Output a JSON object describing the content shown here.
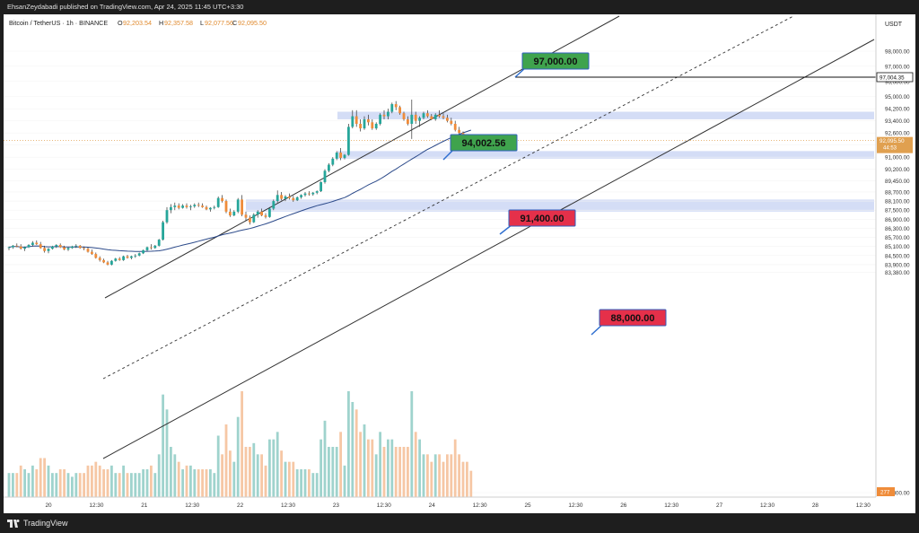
{
  "header": {
    "published": "EhsanZeydabadi published on TradingView.com, Apr 24, 2025 11:45 UTC+3:30"
  },
  "footer": {
    "brand": "TradingView"
  },
  "chart_data": {
    "type": "candlestick",
    "symbol_label": "Bitcoin / TetherUS · 1h · BINANCE",
    "ohlc": {
      "o_label": "O",
      "o": "92,203.54",
      "h_label": "H",
      "h": "92,357.58",
      "l_label": "L",
      "l": "92,077.56",
      "c_label": "C",
      "c": "92,095.50"
    },
    "currency": "USDT",
    "y_ticks": [
      "98,000.00",
      "97,000.00",
      "96,000.00",
      "95,000.00",
      "94,200.00",
      "93,400.00",
      "92,600.00",
      "91,800.00",
      "91,000.00",
      "90,200.00",
      "89,450.00",
      "88,700.00",
      "88,100.00",
      "87,500.00",
      "86,900.00",
      "86,300.00",
      "85,700.00",
      "85,100.00",
      "84,500.00",
      "83,900.00",
      "83,380.00",
      "82,800.00"
    ],
    "x_ticks": [
      "20",
      "12:30",
      "21",
      "12:30",
      "22",
      "12:30",
      "23",
      "12:30",
      "24",
      "12:30",
      "25",
      "12:30",
      "26",
      "12:30",
      "27",
      "12:30",
      "28",
      "12:30"
    ],
    "level_line": {
      "value": "97,004.35"
    },
    "current_price": {
      "value": "92,095.50",
      "countdown": "44:53"
    },
    "volume_last": "277",
    "annotations": [
      {
        "label": "97,000.00",
        "color": "#3fa34d"
      },
      {
        "label": "94,002.56",
        "color": "#3fa34d"
      },
      {
        "label": "91,400.00",
        "color": "#e5304a"
      },
      {
        "label": "88,000.00",
        "color": "#e5304a"
      }
    ],
    "zones": [
      {
        "from": 93500,
        "to": 94000
      },
      {
        "from": 90900,
        "to": 91400
      },
      {
        "from": 87400,
        "to": 88200
      }
    ],
    "colors": {
      "up": "#26a69a",
      "down": "#ef8c3a",
      "zone": "#c5d1f3",
      "ma": "#2c4a8a"
    },
    "candles": [
      [
        85000,
        85100,
        84850,
        85050
      ],
      [
        85050,
        85200,
        84950,
        85150
      ],
      [
        85150,
        85300,
        85050,
        85100
      ],
      [
        85100,
        85250,
        84900,
        84950
      ],
      [
        84950,
        85100,
        84800,
        85050
      ],
      [
        85050,
        85250,
        85000,
        85200
      ],
      [
        85200,
        85450,
        85100,
        85350
      ],
      [
        85350,
        85500,
        85200,
        85250
      ],
      [
        85250,
        85400,
        84950,
        85000
      ],
      [
        85000,
        85150,
        84700,
        84800
      ],
      [
        84800,
        85000,
        84650,
        84950
      ],
      [
        84950,
        85150,
        84900,
        85100
      ],
      [
        85100,
        85250,
        85000,
        85200
      ],
      [
        85200,
        85300,
        85000,
        85050
      ],
      [
        85050,
        85150,
        84850,
        84900
      ],
      [
        84900,
        85050,
        84800,
        85000
      ],
      [
        85000,
        85150,
        84950,
        85100
      ],
      [
        85100,
        85250,
        85000,
        85150
      ],
      [
        85150,
        85200,
        84950,
        85000
      ],
      [
        85000,
        85100,
        84850,
        84950
      ],
      [
        84950,
        85050,
        84700,
        84750
      ],
      [
        84750,
        84900,
        84550,
        84600
      ],
      [
        84600,
        84700,
        84300,
        84350
      ],
      [
        84350,
        84450,
        84100,
        84200
      ],
      [
        84200,
        84300,
        84000,
        84050
      ],
      [
        84050,
        84150,
        83850,
        83900
      ],
      [
        83900,
        84200,
        83850,
        84150
      ],
      [
        84150,
        84350,
        84100,
        84300
      ],
      [
        84300,
        84400,
        84150,
        84200
      ],
      [
        84200,
        84500,
        84150,
        84450
      ],
      [
        84450,
        84550,
        84300,
        84350
      ],
      [
        84350,
        84500,
        84250,
        84450
      ],
      [
        84450,
        84600,
        84350,
        84500
      ],
      [
        84500,
        84700,
        84450,
        84650
      ],
      [
        84650,
        84900,
        84600,
        84850
      ],
      [
        84850,
        85100,
        84800,
        85050
      ],
      [
        85050,
        85250,
        84900,
        85000
      ],
      [
        85000,
        85200,
        84950,
        85150
      ],
      [
        85150,
        85600,
        85100,
        85550
      ],
      [
        85550,
        86800,
        85500,
        86700
      ],
      [
        86700,
        87700,
        86600,
        87500
      ],
      [
        87500,
        87900,
        87300,
        87700
      ],
      [
        87700,
        88000,
        87500,
        87800
      ],
      [
        87800,
        87950,
        87550,
        87650
      ],
      [
        87650,
        87900,
        87600,
        87800
      ],
      [
        87800,
        87950,
        87600,
        87700
      ],
      [
        87700,
        87850,
        87500,
        87750
      ],
      [
        87750,
        87950,
        87650,
        87850
      ],
      [
        87850,
        88000,
        87700,
        87800
      ],
      [
        87800,
        87950,
        87650,
        87700
      ],
      [
        87700,
        87800,
        87500,
        87550
      ],
      [
        87550,
        87700,
        87400,
        87650
      ],
      [
        87650,
        87800,
        87550,
        87700
      ],
      [
        87700,
        88400,
        87650,
        88300
      ],
      [
        88300,
        88500,
        88000,
        88100
      ],
      [
        88100,
        88200,
        87300,
        87400
      ],
      [
        87400,
        87600,
        87050,
        87150
      ],
      [
        87150,
        87500,
        87100,
        87400
      ],
      [
        87400,
        88300,
        87300,
        88200
      ],
      [
        88200,
        88500,
        87100,
        87200
      ],
      [
        87200,
        87400,
        86800,
        87000
      ],
      [
        87000,
        87150,
        86550,
        86700
      ],
      [
        86700,
        87300,
        86650,
        87200
      ],
      [
        87200,
        87500,
        87000,
        87400
      ],
      [
        87400,
        87600,
        87100,
        87150
      ],
      [
        87150,
        87300,
        86950,
        87050
      ],
      [
        87050,
        87700,
        87000,
        87600
      ],
      [
        87600,
        88200,
        87500,
        88100
      ],
      [
        88100,
        88800,
        88000,
        88500
      ],
      [
        88500,
        88700,
        88150,
        88250
      ],
      [
        88250,
        88500,
        88100,
        88400
      ],
      [
        88400,
        88600,
        88200,
        88300
      ],
      [
        88300,
        88450,
        88050,
        88150
      ],
      [
        88150,
        88400,
        88100,
        88350
      ],
      [
        88350,
        88550,
        88250,
        88500
      ],
      [
        88500,
        88700,
        88400,
        88600
      ],
      [
        88600,
        88750,
        88450,
        88550
      ],
      [
        88550,
        88700,
        88450,
        88650
      ],
      [
        88650,
        88800,
        88550,
        88750
      ],
      [
        88750,
        89400,
        88700,
        89350
      ],
      [
        89350,
        90200,
        89250,
        90100
      ],
      [
        90100,
        90600,
        90000,
        90500
      ],
      [
        90500,
        91000,
        90400,
        90900
      ],
      [
        90900,
        91400,
        90800,
        91300
      ],
      [
        91300,
        91600,
        90800,
        90950
      ],
      [
        90950,
        91200,
        90850,
        91150
      ],
      [
        91150,
        93200,
        91100,
        93000
      ],
      [
        93000,
        94100,
        92900,
        93700
      ],
      [
        93700,
        94100,
        93000,
        93200
      ],
      [
        93200,
        93500,
        92700,
        92900
      ],
      [
        92900,
        93700,
        92800,
        93500
      ],
      [
        93500,
        93800,
        93100,
        93300
      ],
      [
        93300,
        93500,
        92800,
        92900
      ],
      [
        92900,
        93300,
        92800,
        93200
      ],
      [
        93200,
        93900,
        93100,
        93800
      ],
      [
        93800,
        94100,
        93500,
        93700
      ],
      [
        93700,
        94200,
        93500,
        94000
      ],
      [
        94000,
        94600,
        93900,
        94500
      ],
      [
        94500,
        94700,
        94100,
        94300
      ],
      [
        94300,
        94400,
        93800,
        93900
      ],
      [
        93900,
        94000,
        93400,
        93500
      ],
      [
        93500,
        93700,
        93100,
        93200
      ],
      [
        93200,
        94800,
        92200,
        93800
      ],
      [
        93800,
        94000,
        93200,
        93400
      ],
      [
        93400,
        93700,
        93000,
        93600
      ],
      [
        93600,
        94000,
        93500,
        93900
      ],
      [
        93900,
        94100,
        93600,
        93700
      ],
      [
        93700,
        93850,
        93450,
        93500
      ],
      [
        93500,
        93900,
        93400,
        93800
      ],
      [
        93800,
        94100,
        93600,
        93700
      ],
      [
        93700,
        93900,
        93500,
        93600
      ],
      [
        93600,
        93800,
        93300,
        93400
      ],
      [
        93400,
        93600,
        93100,
        93200
      ],
      [
        93200,
        93400,
        92700,
        92800
      ],
      [
        92800,
        93000,
        92500,
        92600
      ],
      [
        92600,
        92700,
        92300,
        92400
      ],
      [
        92400,
        92500,
        92100,
        92200
      ],
      [
        92203.54,
        92357.58,
        92077.56,
        92095.5
      ]
    ]
  }
}
